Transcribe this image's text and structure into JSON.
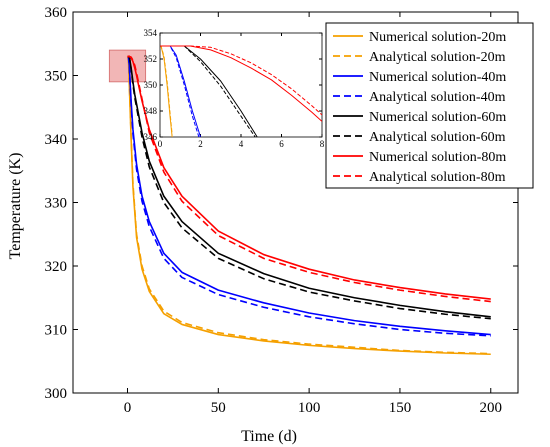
{
  "colors": {
    "s20": "#f5a000",
    "s40": "#0000ff",
    "s60": "#000000",
    "s80": "#ff0000",
    "zoom_box_fill": "#f2b6b6",
    "zoom_box_stroke": "#d36a6a"
  },
  "chart_data": [
    {
      "type": "line",
      "title": "",
      "xlabel": "Time (d)",
      "ylabel": "Temperature (K)",
      "xlim": [
        -30,
        215
      ],
      "ylim": [
        300,
        360
      ],
      "xticks": [
        0,
        50,
        100,
        150,
        200
      ],
      "yticks": [
        300,
        310,
        320,
        330,
        340,
        350,
        360
      ],
      "grid": false,
      "legend_position": "top-right",
      "series": [
        {
          "name": "Numerical solution-20m",
          "depth": 20,
          "kind": "numerical",
          "style": "solid",
          "color_key": "s20",
          "x": [
            0,
            0.5,
            1,
            2,
            3,
            5,
            8,
            12,
            20,
            30,
            50,
            75,
            100,
            125,
            150,
            175,
            200
          ],
          "y": [
            353,
            352.7,
            348.5,
            340,
            332.5,
            324.5,
            319.5,
            316,
            312.5,
            310.8,
            309.2,
            308.2,
            307.5,
            307,
            306.6,
            306.3,
            306.1
          ]
        },
        {
          "name": "Analytical solution-20m",
          "depth": 20,
          "kind": "analytical",
          "style": "dashed",
          "color_key": "s20",
          "x": [
            0,
            0.5,
            1,
            2,
            3,
            5,
            8,
            12,
            20,
            30,
            50,
            75,
            100,
            125,
            150,
            175,
            200
          ],
          "y": [
            353,
            352.8,
            348.8,
            340.5,
            333,
            325,
            320,
            316.4,
            312.9,
            311.1,
            309.5,
            308.4,
            307.7,
            307.2,
            306.7,
            306.4,
            306.2
          ]
        },
        {
          "name": "Numerical solution-40m",
          "depth": 40,
          "kind": "numerical",
          "style": "solid",
          "color_key": "s40",
          "x": [
            0,
            0.5,
            1,
            1.5,
            2,
            3,
            5,
            8,
            12,
            20,
            30,
            50,
            75,
            100,
            125,
            150,
            175,
            200
          ],
          "y": [
            353,
            353,
            351.5,
            348.8,
            346,
            341.5,
            336,
            331,
            327,
            322,
            319,
            316.2,
            314.2,
            312.6,
            311.4,
            310.5,
            309.8,
            309.2
          ]
        },
        {
          "name": "Analytical solution-40m",
          "depth": 40,
          "kind": "analytical",
          "style": "dashed",
          "color_key": "s40",
          "x": [
            0,
            0.5,
            1,
            1.5,
            2,
            3,
            5,
            8,
            12,
            20,
            30,
            50,
            75,
            100,
            125,
            150,
            175,
            200
          ],
          "y": [
            353,
            353,
            351.2,
            348.3,
            345.5,
            340.8,
            335.2,
            330.2,
            326.2,
            321.2,
            318.2,
            315.5,
            313.5,
            312,
            310.9,
            310,
            309.4,
            309
          ]
        },
        {
          "name": "Numerical solution-60m",
          "depth": 60,
          "kind": "numerical",
          "style": "solid",
          "color_key": "s60",
          "x": [
            0,
            1,
            2,
            3,
            4,
            5,
            8,
            12,
            20,
            30,
            50,
            75,
            100,
            125,
            150,
            175,
            200
          ],
          "y": [
            353,
            353,
            351.2,
            349,
            347,
            345.5,
            341,
            336.5,
            331,
            327,
            322,
            318.8,
            316.5,
            315,
            313.8,
            312.8,
            312
          ]
        },
        {
          "name": "Analytical solution-60m",
          "depth": 60,
          "kind": "analytical",
          "style": "dashed",
          "color_key": "s60",
          "x": [
            0,
            1,
            2,
            3,
            4,
            5,
            8,
            12,
            20,
            30,
            50,
            75,
            100,
            125,
            150,
            175,
            200
          ],
          "y": [
            353,
            353,
            351,
            348.6,
            346.5,
            345,
            340.3,
            335.6,
            330,
            326,
            321.2,
            318,
            315.9,
            314.5,
            313.3,
            312.4,
            311.7
          ]
        },
        {
          "name": "Numerical solution-80m",
          "depth": 80,
          "kind": "numerical",
          "style": "solid",
          "color_key": "s80",
          "x": [
            0,
            1,
            2,
            3,
            4,
            5,
            6,
            8,
            12,
            20,
            30,
            50,
            75,
            100,
            125,
            150,
            175,
            200
          ],
          "y": [
            353,
            353,
            352.8,
            352.2,
            351.2,
            350,
            348.6,
            346,
            341.5,
            335.5,
            331,
            325.5,
            321.8,
            319.5,
            317.8,
            316.6,
            315.6,
            314.8
          ]
        },
        {
          "name": "Analytical solution-80m",
          "depth": 80,
          "kind": "analytical",
          "style": "dashed",
          "color_key": "s80",
          "x": [
            0,
            1,
            2,
            3,
            4,
            5,
            6,
            8,
            12,
            20,
            30,
            50,
            75,
            100,
            125,
            150,
            175,
            200
          ],
          "y": [
            353,
            353,
            352.9,
            352.4,
            351.6,
            350.4,
            349,
            346.3,
            341,
            334.8,
            330.2,
            324.8,
            321.2,
            319,
            317.4,
            316.2,
            315.2,
            314.4
          ]
        }
      ]
    },
    {
      "type": "line",
      "role": "inset",
      "title": "",
      "xlabel": "",
      "ylabel": "",
      "xlim": [
        0,
        8
      ],
      "ylim": [
        346,
        354
      ],
      "xticks": [
        0,
        2,
        4,
        6,
        8
      ],
      "yticks": [
        346,
        348,
        350,
        352,
        354
      ],
      "grid": false,
      "series": [
        {
          "name": "Numerical solution-20m",
          "style": "solid",
          "color_key": "s20",
          "x": [
            0,
            0.05,
            0.2,
            0.35,
            0.5,
            0.6
          ],
          "y": [
            353,
            353,
            352,
            350,
            347.5,
            346
          ]
        },
        {
          "name": "Analytical solution-20m",
          "style": "dashed",
          "color_key": "s20",
          "x": [
            0,
            0.05,
            0.2,
            0.35,
            0.5,
            0.6
          ],
          "y": [
            353,
            353,
            352.2,
            350.3,
            347.8,
            346.2
          ]
        },
        {
          "name": "Numerical solution-40m",
          "style": "solid",
          "color_key": "s40",
          "x": [
            0,
            0.5,
            0.8,
            1.2,
            1.6,
            2.0
          ],
          "y": [
            353,
            353,
            352.3,
            350.3,
            348,
            346
          ]
        },
        {
          "name": "Analytical solution-40m",
          "style": "dashed",
          "color_key": "s40",
          "x": [
            0,
            0.5,
            0.8,
            1.2,
            1.6,
            2.0
          ],
          "y": [
            353,
            353,
            352.1,
            350,
            347.6,
            345.6
          ]
        },
        {
          "name": "Numerical solution-60m",
          "style": "solid",
          "color_key": "s60",
          "x": [
            0,
            1.2,
            2,
            3,
            4,
            4.8
          ],
          "y": [
            353,
            353,
            352,
            350.3,
            348,
            346
          ]
        },
        {
          "name": "Analytical solution-60m",
          "style": "dashed",
          "color_key": "s60",
          "x": [
            0,
            1.2,
            2,
            3,
            4,
            4.7
          ],
          "y": [
            353,
            353,
            351.8,
            349.9,
            347.6,
            346
          ]
        },
        {
          "name": "Numerical solution-80m",
          "style": "solid",
          "color_key": "s80",
          "x": [
            0,
            1.5,
            2.5,
            3.5,
            4.5,
            5.5,
            6.5,
            7.5,
            8
          ],
          "y": [
            353,
            353,
            352.7,
            352.1,
            351.3,
            350.4,
            349.2,
            347.9,
            347.2
          ]
        },
        {
          "name": "Analytical solution-80m",
          "style": "dashed",
          "color_key": "s80",
          "x": [
            0,
            1.5,
            2.5,
            3.5,
            4.5,
            5.5,
            6.5,
            7.5,
            8
          ],
          "y": [
            353,
            353,
            352.9,
            352.4,
            351.7,
            350.8,
            349.7,
            348.4,
            347.7
          ]
        }
      ]
    }
  ],
  "zoom_region": {
    "x0": -10,
    "x1": 10,
    "y0": 349,
    "y1": 354
  }
}
